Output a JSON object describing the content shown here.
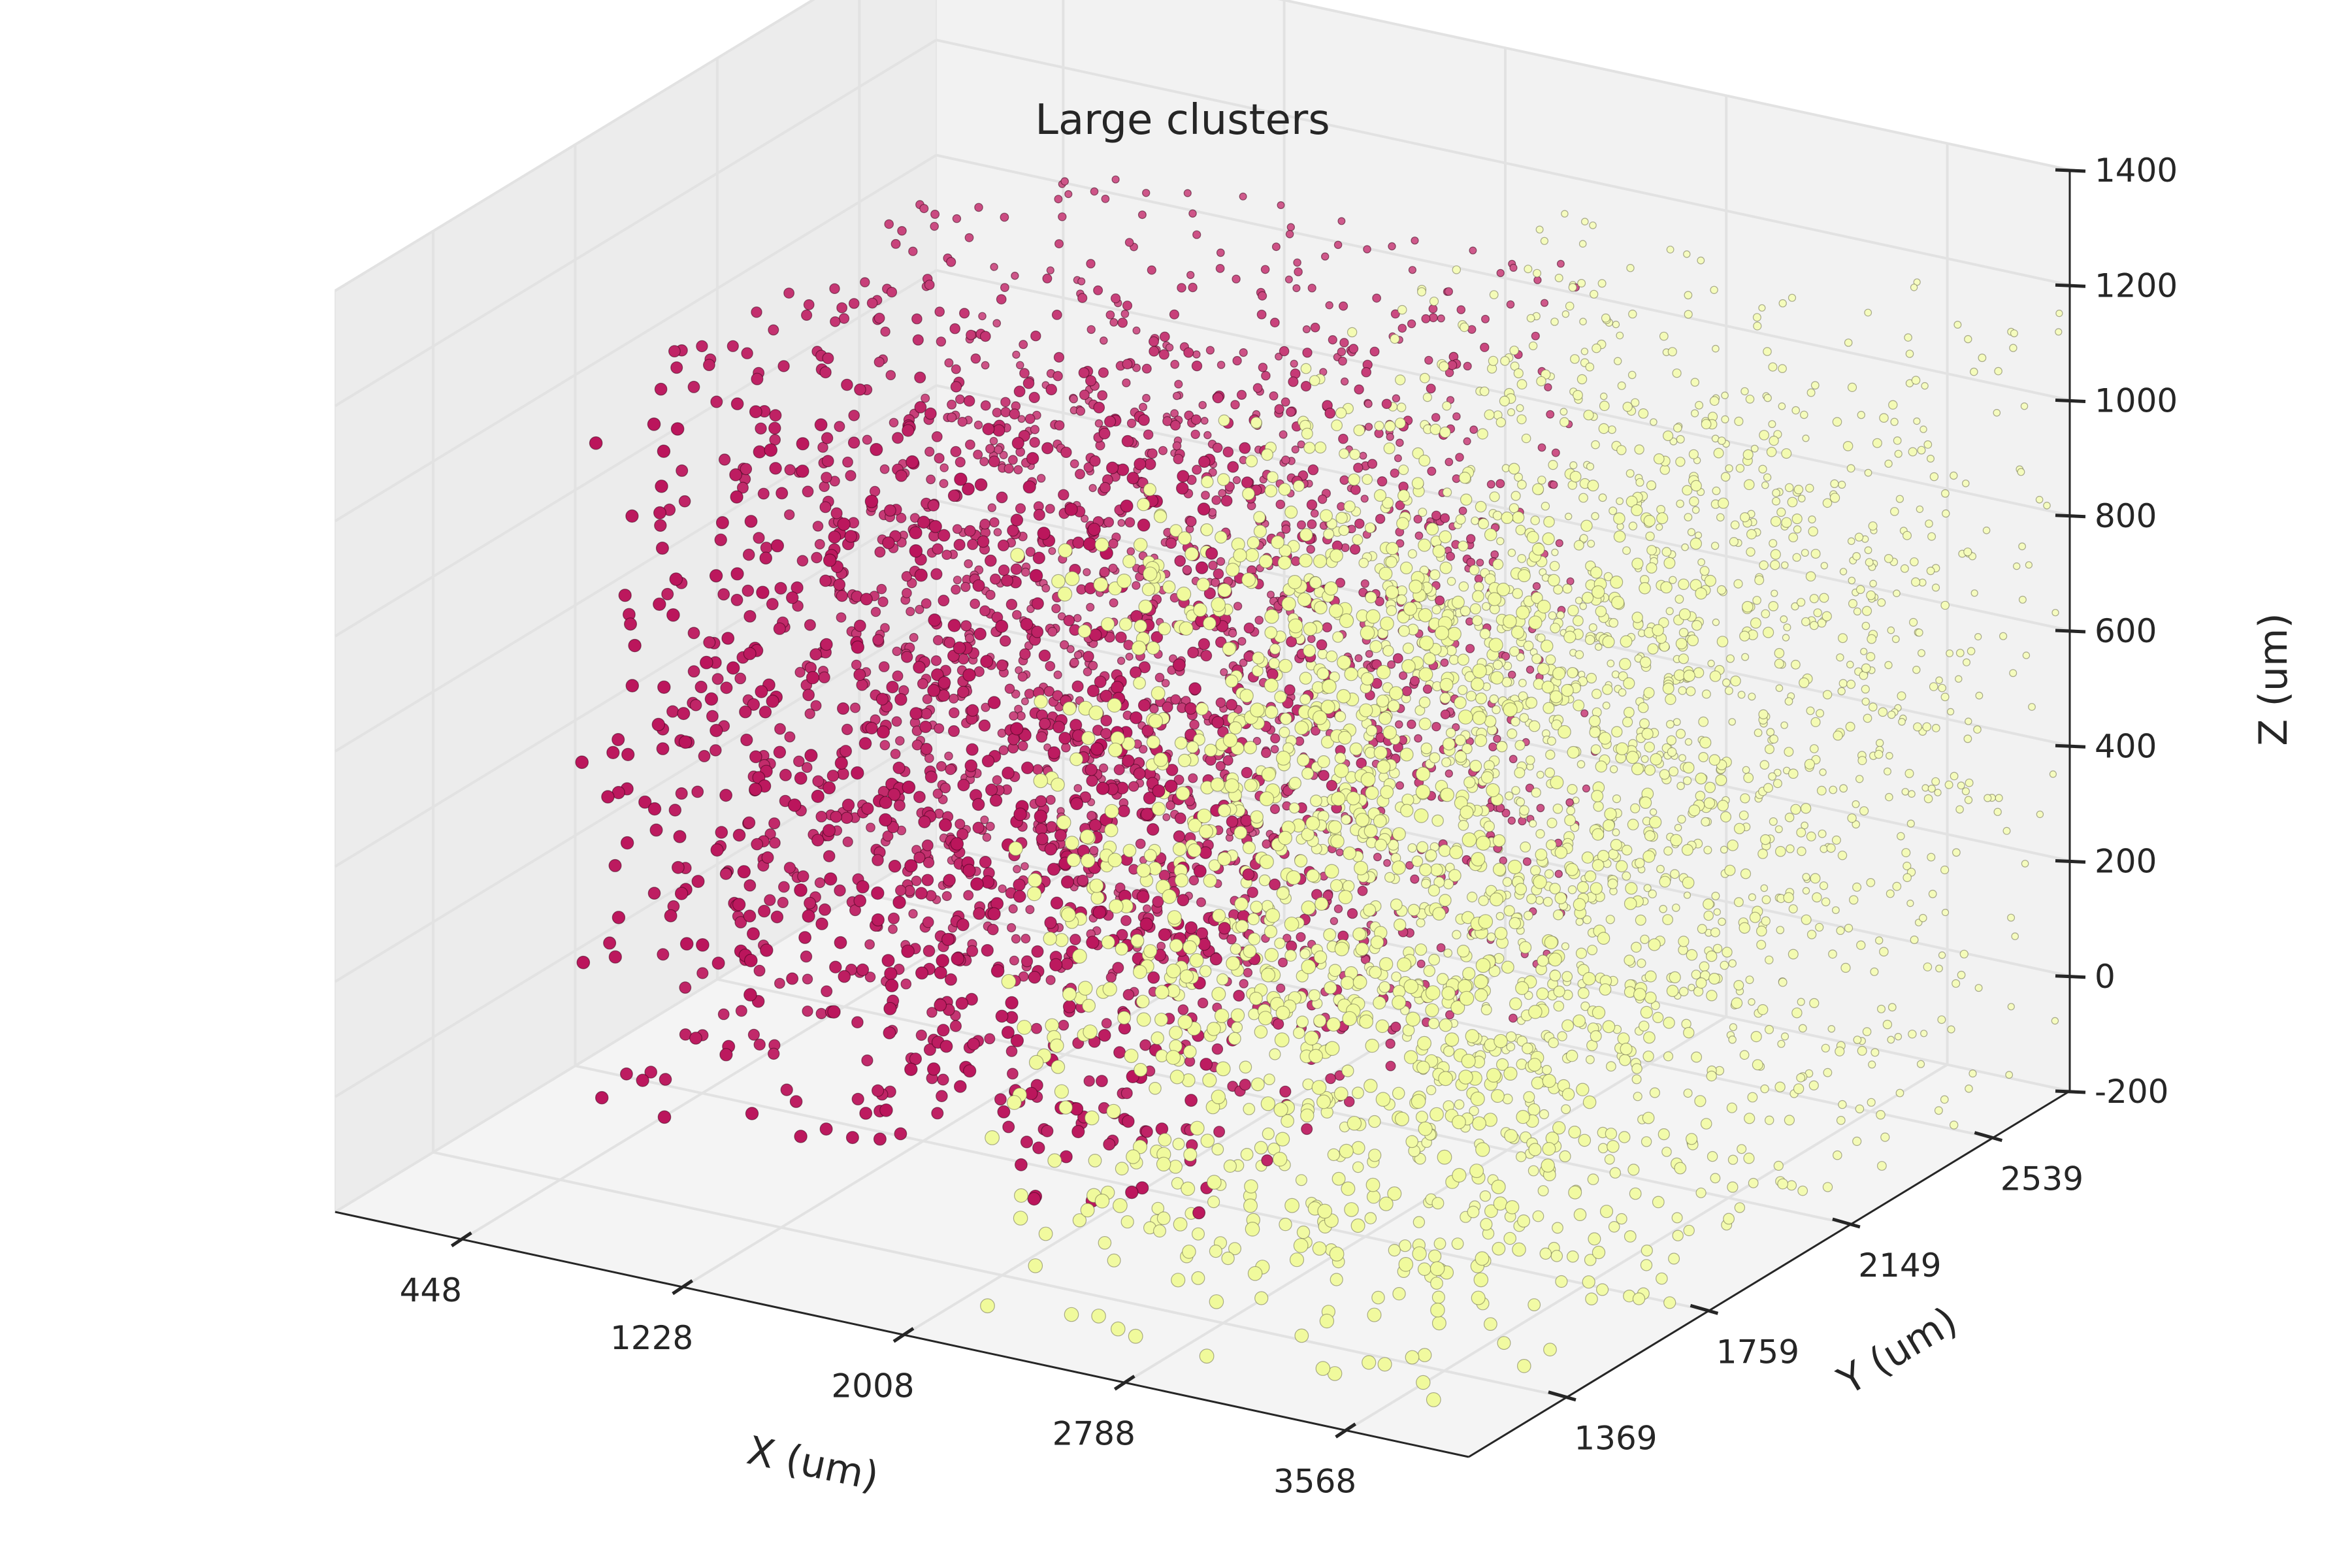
{
  "chart_data": {
    "type": "scatter",
    "projection": "3d",
    "title": "Large clusters",
    "xlabel": "X (um)",
    "ylabel": "Y (um)",
    "zlabel": "Z (um)",
    "xlim": [
      0,
      4000
    ],
    "ylim": [
      1100,
      2750
    ],
    "zlim": [
      -200,
      1400
    ],
    "xticks": [
      448,
      1228,
      2008,
      2788,
      3568
    ],
    "yticks": [
      1369,
      1759,
      2149,
      2539
    ],
    "zticks": [
      -200,
      0,
      200,
      400,
      600,
      800,
      1000,
      1200,
      1400
    ],
    "grid": true,
    "legend": "none",
    "series": [
      {
        "color": "#b5004d",
        "x_range": [
          400,
          2500
        ],
        "y_range": [
          1450,
          2650
        ],
        "z_range": [
          -100,
          1100
        ],
        "z_center": 500,
        "point_count": 2600
      },
      {
        "color": "#f0fa9a",
        "x_range": [
          2200,
          4000
        ],
        "y_range": [
          1150,
          2750
        ],
        "z_range": [
          -150,
          1150
        ],
        "z_center": 520,
        "point_count": 2800
      }
    ]
  }
}
